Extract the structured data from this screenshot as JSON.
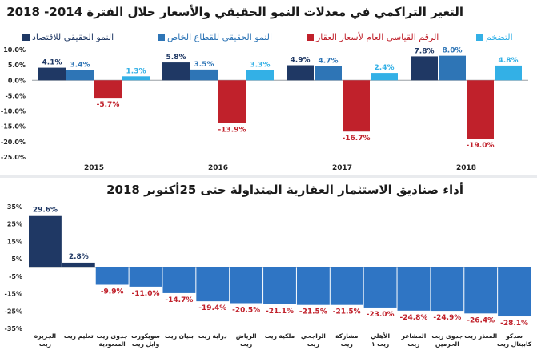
{
  "colors": {
    "economy": "#1f3864",
    "private": "#2e75b6",
    "realestate": "#c0212b",
    "inflation": "#33b0e6",
    "fund_bar": "#2f75c4",
    "fund_top": "#1f3864",
    "negative_label": "#c0212b",
    "positive_label": "#1f3864"
  },
  "chart_data": [
    {
      "type": "bar",
      "title": "التغير التراكمي في معدلات النمو الحقيقي والأسعار خلال الفترة 2014- 2018",
      "categories": [
        "2015",
        "2016",
        "2017",
        "2018"
      ],
      "ylim": [
        -25,
        10
      ],
      "yticks": [
        "10.0%",
        "5.0%",
        "0.0%",
        "-5.0%",
        "-10.0%",
        "-15.0%",
        "-20.0%",
        "-25.0%"
      ],
      "series": [
        {
          "name": "النمو الحقيقي للاقتصاد",
          "color_key": "economy",
          "values": [
            4.1,
            5.8,
            4.9,
            7.8
          ],
          "labels": [
            "4.1%",
            "5.8%",
            "4.9%",
            "7.8%"
          ]
        },
        {
          "name": "النمو الحقيقي للقطاع الخاص",
          "color_key": "private",
          "values": [
            3.4,
            3.5,
            4.7,
            8.0
          ],
          "labels": [
            "3.4%",
            "3.5%",
            "4.7%",
            "8.0%"
          ]
        },
        {
          "name": "الرقم القياسي العام لأسعار العقار",
          "color_key": "realestate",
          "values": [
            -5.7,
            -13.9,
            -16.7,
            -19.0
          ],
          "labels": [
            "-5.7%",
            "-13.9%",
            "-16.7%",
            "-19.0%"
          ]
        },
        {
          "name": "التضخم",
          "color_key": "inflation",
          "values": [
            1.3,
            3.3,
            2.4,
            4.8
          ],
          "labels": [
            "1.3%",
            "3.3%",
            "2.4%",
            "4.8%"
          ]
        }
      ]
    },
    {
      "type": "bar",
      "title": "أداء صناديق الاستثمار العقارية المتداولة حتى 25أكتوبر 2018",
      "ylim": [
        -35,
        35
      ],
      "yticks": [
        "35%",
        "25%",
        "15%",
        "5%",
        "-5%",
        "-15%",
        "-25%",
        "-35%"
      ],
      "categories": [
        [
          "الجزيرة",
          "ريت"
        ],
        [
          "تعليم ريت"
        ],
        [
          "جدوى ريت",
          "السعودية"
        ],
        [
          "سويكورب",
          "وابل ريت"
        ],
        [
          "بنيان ريت"
        ],
        [
          "دراية ريت"
        ],
        [
          "الرياض",
          "ريت"
        ],
        [
          "ملكية ريت"
        ],
        [
          "الراجحي",
          "ريت"
        ],
        [
          "مشاركة",
          "ريت"
        ],
        [
          "الأهلي",
          "ريت ١"
        ],
        [
          "المشاعر",
          "ريت"
        ],
        [
          "جدوى ريت",
          "الحرمين"
        ],
        [
          "المعذر ريت"
        ],
        [
          "سدكو",
          "كابيتال ريت"
        ]
      ],
      "values": [
        29.6,
        2.8,
        -9.9,
        -11.0,
        -14.7,
        -19.4,
        -20.5,
        -21.1,
        -21.5,
        -21.5,
        -23.0,
        -24.8,
        -24.9,
        -26.4,
        -28.1
      ],
      "labels": [
        "29.6%",
        "2.8%",
        "-9.9%",
        "-11.0%",
        "-14.7%",
        "-19.4%",
        "-20.5%",
        "-21.1%",
        "-21.5%",
        "-21.5%",
        "-23.0%",
        "-24.8%",
        "-24.9%",
        "-26.4%",
        "-28.1%"
      ]
    }
  ]
}
